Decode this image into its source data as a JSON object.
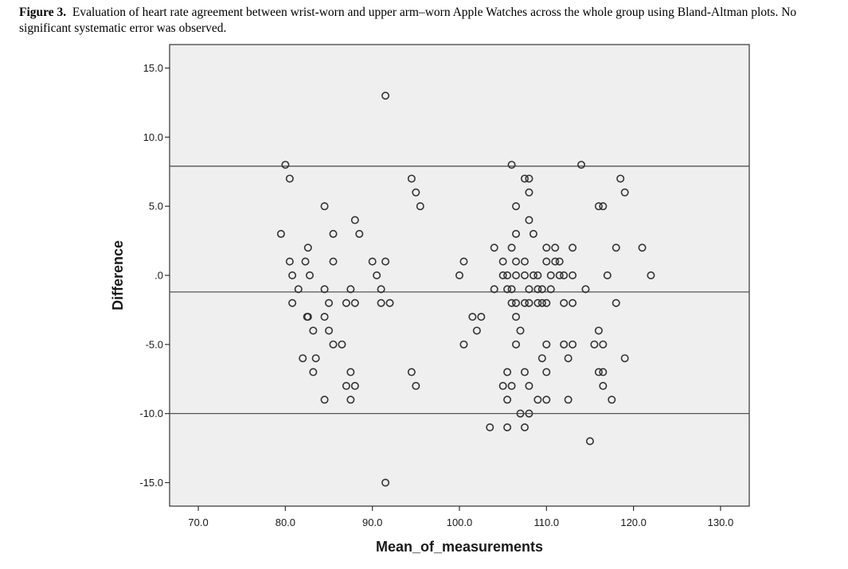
{
  "caption": {
    "label": "Figure 3.",
    "text": "Evaluation of heart rate agreement between wrist-worn and upper arm–worn Apple Watches across the whole group using Bland-Altman plots. No significant systematic error was observed."
  },
  "colors": {
    "plot_background": "#efefef",
    "marker_stroke": "#333333",
    "reference_line": "#555555"
  },
  "chart_data": {
    "type": "scatter",
    "xlabel": "Mean_of_measurements",
    "ylabel": "Difference",
    "xlim": [
      66.7,
      133.3
    ],
    "ylim": [
      -16.7,
      16.7
    ],
    "x_ticks": [
      70,
      80,
      90,
      100,
      110,
      120,
      130
    ],
    "x_tick_labels": [
      "70.0",
      "80.0",
      "90.0",
      "100.0",
      "110.0",
      "120.0",
      "130.0"
    ],
    "y_ticks": [
      15,
      10,
      5,
      0,
      -5,
      -10,
      -15
    ],
    "y_tick_labels": [
      "15.0",
      "10.0",
      "5.0",
      ".0",
      "-5.0",
      "-10.0",
      "-15.0"
    ],
    "grid": false,
    "reference_lines": [
      7.9,
      -1.2,
      -10.0
    ],
    "points": [
      [
        80.0,
        8
      ],
      [
        80.5,
        7
      ],
      [
        79.5,
        3
      ],
      [
        80.5,
        1
      ],
      [
        80.8,
        0
      ],
      [
        81.5,
        -1
      ],
      [
        80.8,
        -2
      ],
      [
        82.3,
        1
      ],
      [
        82.6,
        2
      ],
      [
        82.8,
        0
      ],
      [
        82.5,
        -3
      ],
      [
        82.6,
        -3
      ],
      [
        84.5,
        5
      ],
      [
        84.5,
        -1
      ],
      [
        85.0,
        -2
      ],
      [
        84.5,
        -3
      ],
      [
        83.2,
        -4
      ],
      [
        82.0,
        -6
      ],
      [
        83.5,
        -6
      ],
      [
        83.2,
        -7
      ],
      [
        84.5,
        -9
      ],
      [
        85.5,
        3
      ],
      [
        85.5,
        1
      ],
      [
        85.0,
        -4
      ],
      [
        85.5,
        -5
      ],
      [
        86.5,
        -5
      ],
      [
        87.5,
        -1
      ],
      [
        87.0,
        -2
      ],
      [
        88.0,
        -2
      ],
      [
        87.5,
        -7
      ],
      [
        87.0,
        -8
      ],
      [
        88.0,
        -8
      ],
      [
        87.5,
        -9
      ],
      [
        88.0,
        4
      ],
      [
        88.5,
        3
      ],
      [
        90.0,
        1
      ],
      [
        90.5,
        0
      ],
      [
        91.0,
        -1
      ],
      [
        91.5,
        1
      ],
      [
        91.0,
        -2
      ],
      [
        92.0,
        -2
      ],
      [
        91.5,
        13
      ],
      [
        91.5,
        -15
      ],
      [
        94.5,
        7
      ],
      [
        95.0,
        6
      ],
      [
        95.5,
        5
      ],
      [
        94.5,
        -7
      ],
      [
        95.0,
        -8
      ],
      [
        100.0,
        0
      ],
      [
        100.5,
        1
      ],
      [
        100.5,
        -5
      ],
      [
        101.5,
        -3
      ],
      [
        102.5,
        -3
      ],
      [
        102.0,
        -4
      ],
      [
        103.5,
        -11
      ],
      [
        104.0,
        -1
      ],
      [
        104.0,
        2
      ],
      [
        105.0,
        1
      ],
      [
        105.0,
        0
      ],
      [
        105.5,
        0
      ],
      [
        105.5,
        -1
      ],
      [
        105.0,
        -8
      ],
      [
        105.5,
        -7
      ],
      [
        106.0,
        -8
      ],
      [
        105.5,
        -9
      ],
      [
        105.5,
        -11
      ],
      [
        106.0,
        8
      ],
      [
        106.5,
        5
      ],
      [
        106.5,
        3
      ],
      [
        106.0,
        2
      ],
      [
        106.5,
        1
      ],
      [
        106.5,
        0
      ],
      [
        106.0,
        -1
      ],
      [
        106.0,
        -2
      ],
      [
        106.5,
        -2
      ],
      [
        106.5,
        -3
      ],
      [
        106.5,
        -5
      ],
      [
        107.0,
        -4
      ],
      [
        107.5,
        -2
      ],
      [
        107.5,
        -7
      ],
      [
        107.0,
        -10
      ],
      [
        107.5,
        -11
      ],
      [
        107.5,
        7
      ],
      [
        108.0,
        7
      ],
      [
        108.0,
        6
      ],
      [
        108.0,
        4
      ],
      [
        108.5,
        3
      ],
      [
        107.5,
        1
      ],
      [
        107.5,
        0
      ],
      [
        108.0,
        -1
      ],
      [
        108.0,
        -2
      ],
      [
        108.0,
        -8
      ],
      [
        108.0,
        -10
      ],
      [
        108.5,
        0
      ],
      [
        109.0,
        0
      ],
      [
        109.0,
        -1
      ],
      [
        109.0,
        -2
      ],
      [
        109.5,
        -1
      ],
      [
        109.0,
        -9
      ],
      [
        110.0,
        2
      ],
      [
        110.0,
        1
      ],
      [
        109.5,
        -2
      ],
      [
        110.0,
        -2
      ],
      [
        110.0,
        -5
      ],
      [
        110.0,
        -7
      ],
      [
        110.0,
        -9
      ],
      [
        109.5,
        -6
      ],
      [
        111.0,
        2
      ],
      [
        111.0,
        1
      ],
      [
        110.5,
        0
      ],
      [
        110.5,
        -1
      ],
      [
        111.5,
        1
      ],
      [
        111.5,
        0
      ],
      [
        112.0,
        0
      ],
      [
        112.0,
        -2
      ],
      [
        112.0,
        -5
      ],
      [
        112.5,
        -6
      ],
      [
        112.5,
        -9
      ],
      [
        113.0,
        2
      ],
      [
        113.0,
        0
      ],
      [
        113.0,
        -2
      ],
      [
        113.0,
        -5
      ],
      [
        114.0,
        8
      ],
      [
        114.5,
        -1
      ],
      [
        115.0,
        -12
      ],
      [
        116.0,
        5
      ],
      [
        116.5,
        5
      ],
      [
        115.5,
        -5
      ],
      [
        116.0,
        -4
      ],
      [
        116.5,
        -5
      ],
      [
        116.0,
        -7
      ],
      [
        116.5,
        -7
      ],
      [
        116.5,
        -8
      ],
      [
        117.0,
        0
      ],
      [
        117.5,
        -9
      ],
      [
        118.0,
        2
      ],
      [
        118.0,
        -2
      ],
      [
        118.5,
        7
      ],
      [
        119.0,
        6
      ],
      [
        119.0,
        -6
      ],
      [
        121.0,
        2
      ],
      [
        122.0,
        0
      ]
    ]
  }
}
